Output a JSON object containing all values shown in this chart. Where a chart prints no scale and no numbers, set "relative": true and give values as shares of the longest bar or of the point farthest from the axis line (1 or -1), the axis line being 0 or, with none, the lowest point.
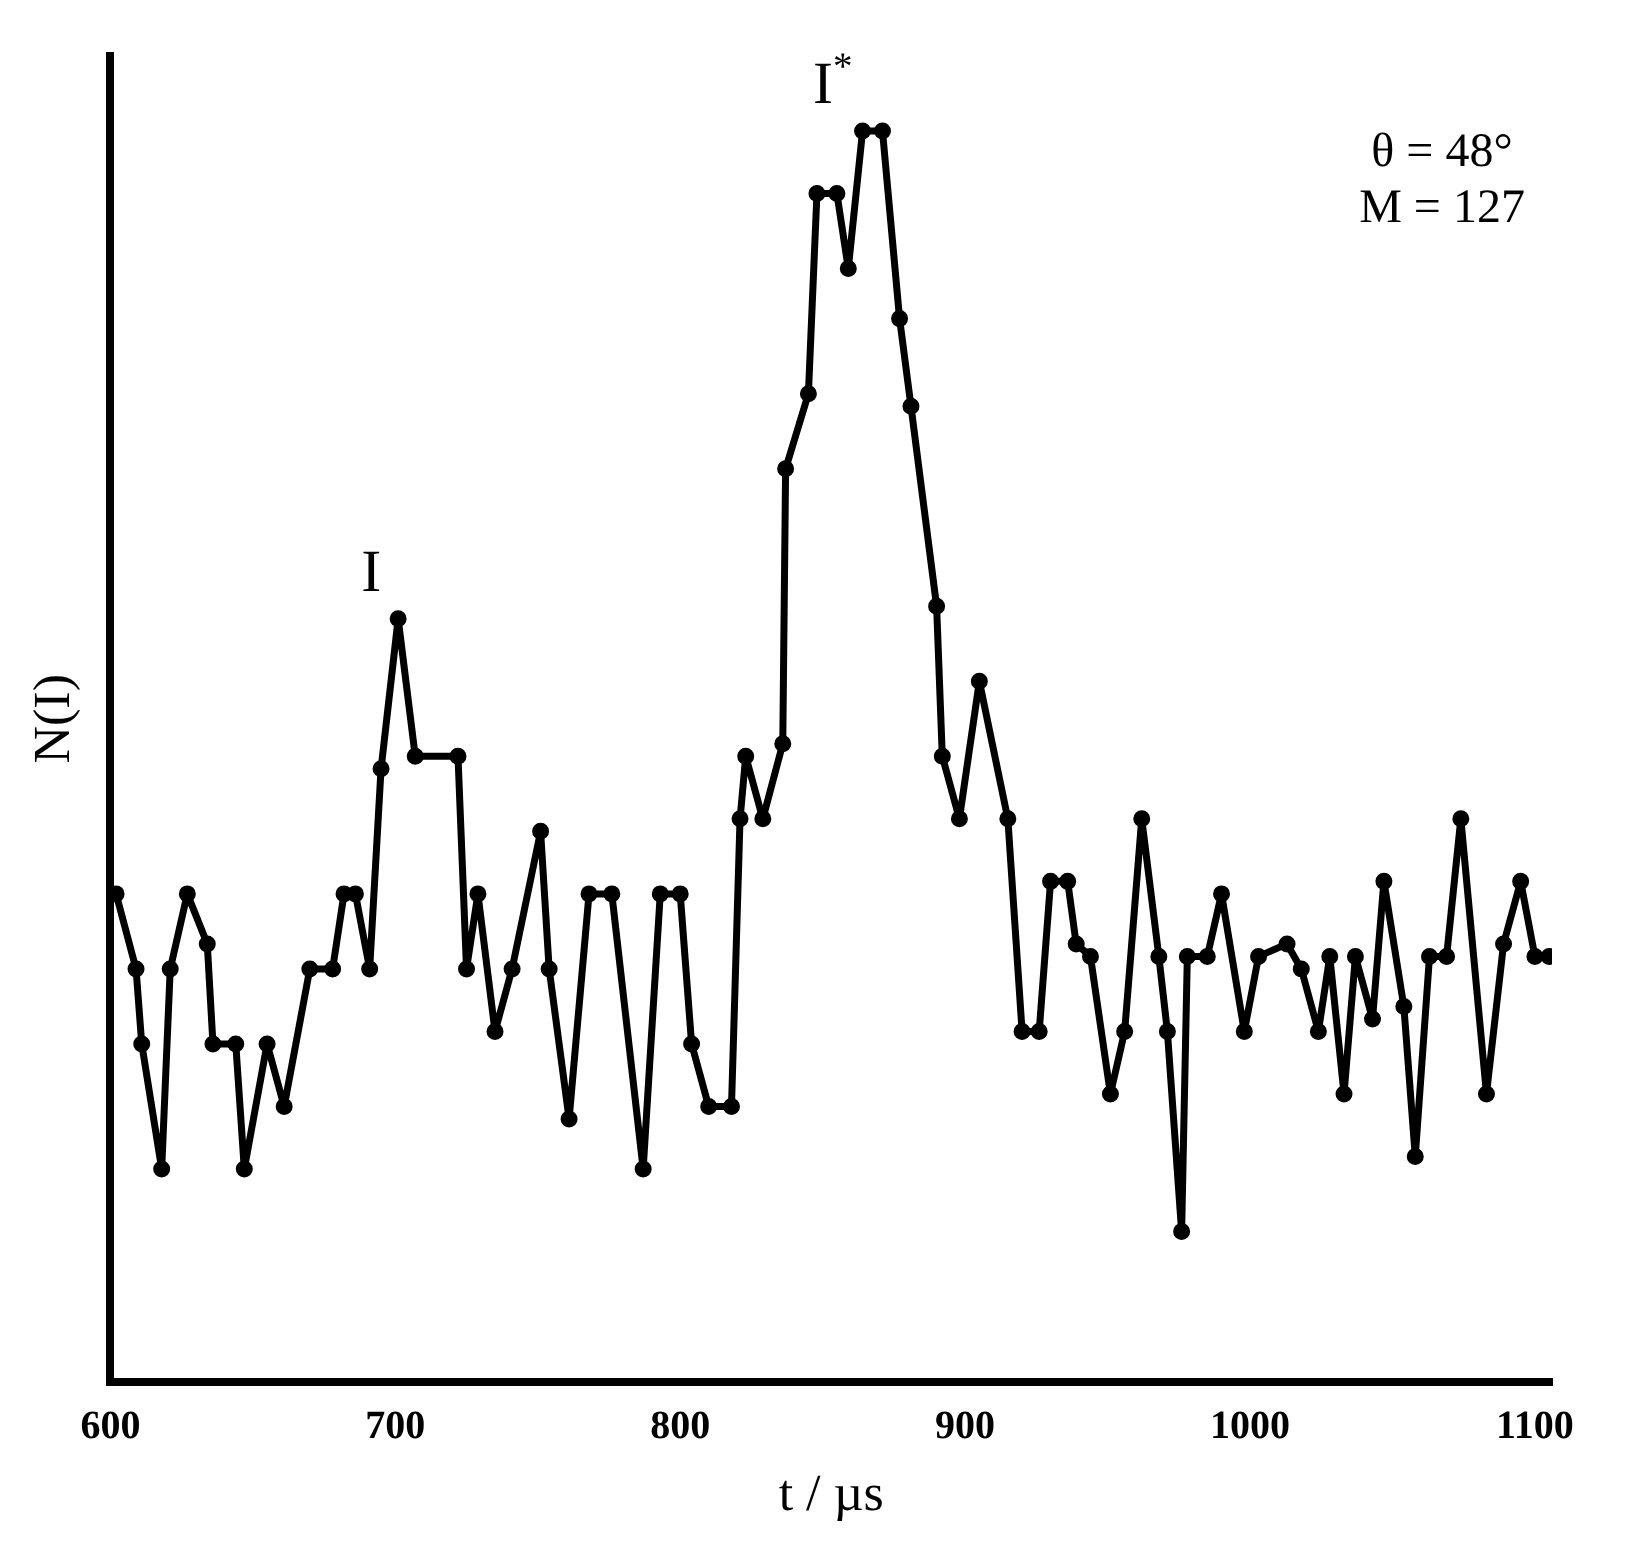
{
  "chart_data": {
    "type": "line",
    "relative": true,
    "xlabel": "t / µs",
    "ylabel": "N(I)",
    "xlim": [
      600,
      1106
    ],
    "xticks": [
      600,
      700,
      800,
      900,
      1000,
      1100
    ],
    "grid": false,
    "legend": false,
    "marker": "circle",
    "line_style": "solid",
    "annotations": [
      {
        "text": "I",
        "x": 700,
        "y": 0.61
      },
      {
        "text": "I$^{*}$",
        "x": 862,
        "y": 1.0
      },
      "θ = 48°",
      "M = 127"
    ],
    "series": [
      {
        "color": "#000000",
        "x": [
          602,
          609,
          611,
          618,
          621,
          627,
          634,
          636,
          644,
          647,
          655,
          661,
          670,
          678,
          682,
          686,
          691,
          695,
          701,
          707,
          722,
          725,
          729,
          735,
          741,
          751,
          754,
          761,
          768,
          776,
          787,
          793,
          800,
          804,
          810,
          818,
          821,
          823,
          829,
          836,
          837,
          845,
          848,
          855,
          859,
          864,
          871,
          877,
          881,
          890,
          892,
          898,
          905,
          915,
          920,
          926,
          930,
          936,
          939,
          944,
          951,
          956,
          962,
          968,
          971,
          976,
          978,
          985,
          990,
          998,
          1003,
          1013,
          1018,
          1024,
          1028,
          1033,
          1037,
          1043,
          1047,
          1054,
          1058,
          1063,
          1069,
          1074,
          1083,
          1089,
          1095,
          1100,
          1105
        ],
        "values": [
          0.39,
          0.33,
          0.27,
          0.17,
          0.33,
          0.39,
          0.35,
          0.27,
          0.27,
          0.17,
          0.27,
          0.22,
          0.33,
          0.33,
          0.39,
          0.39,
          0.33,
          0.49,
          0.61,
          0.5,
          0.5,
          0.33,
          0.39,
          0.28,
          0.33,
          0.44,
          0.33,
          0.21,
          0.39,
          0.39,
          0.17,
          0.39,
          0.39,
          0.27,
          0.22,
          0.22,
          0.45,
          0.5,
          0.45,
          0.51,
          0.73,
          0.79,
          0.95,
          0.95,
          0.89,
          1.0,
          1.0,
          0.85,
          0.78,
          0.62,
          0.5,
          0.45,
          0.56,
          0.45,
          0.28,
          0.28,
          0.4,
          0.4,
          0.35,
          0.34,
          0.23,
          0.28,
          0.45,
          0.34,
          0.28,
          0.12,
          0.34,
          0.34,
          0.39,
          0.28,
          0.34,
          0.35,
          0.33,
          0.28,
          0.34,
          0.23,
          0.34,
          0.29,
          0.4,
          0.3,
          0.18,
          0.34,
          0.34,
          0.45,
          0.23,
          0.35,
          0.4,
          0.34,
          0.34
        ]
      }
    ]
  }
}
